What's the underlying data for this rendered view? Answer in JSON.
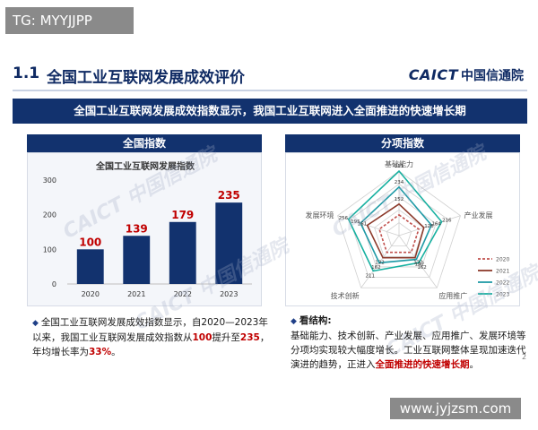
{
  "badge_top": "TG: MYYJJPP",
  "header": {
    "section_number": "1.1",
    "title": "全国工业互联网发展成效评价",
    "logo_latin": "CAICT",
    "logo_cn": "中国信通院"
  },
  "banner": "全国工业互联网发展成效指数显示，我国工业互联网进入全面推进的快速增长期",
  "left_panel": {
    "heading": "全国指数"
  },
  "right_panel": {
    "heading": "分项指数"
  },
  "watermark": "CAICT 中国信通院",
  "chart_data": [
    {
      "type": "bar",
      "title": "全国工业互联网发展指数",
      "categories": [
        "2020",
        "2021",
        "2022",
        "2023"
      ],
      "values": [
        100,
        139,
        179,
        235
      ],
      "ylim": [
        0,
        300
      ],
      "yticks": [
        "0",
        "100",
        "200",
        "300"
      ],
      "grid": false,
      "colors": {
        "bar": "#12326e",
        "label": "#c00000"
      }
    },
    {
      "type": "radar",
      "axes": [
        "基础能力",
        "产业发展",
        "应用推广",
        "技术创新",
        "发展环境"
      ],
      "max": 311,
      "series": [
        {
          "name": "2020",
          "values": [
            100,
            100,
            100,
            100,
            100
          ],
          "color": "#c0504d",
          "dash": true
        },
        {
          "name": "2021",
          "values": [
            152,
            126,
            132,
            132,
            161
          ],
          "color": "#8c3a2b",
          "dash": false
        },
        {
          "name": "2022",
          "values": [
            234,
            164,
            142,
            162,
            195
          ],
          "color": "#1f9aa6",
          "dash": false
        },
        {
          "name": "2023",
          "values": [
            311,
            216,
            162,
            211,
            256
          ],
          "color": "#16b0a0",
          "dash": false
        }
      ],
      "visible_labels": [
        "311",
        "234",
        "152",
        "216",
        "164",
        "142",
        "162",
        "211",
        "195",
        "256",
        "132",
        "132",
        "126",
        "161"
      ]
    }
  ],
  "notes": {
    "left": {
      "part1": "全国工业互联网发展成效指数显示，自2020—2023年以来，我国工业互联网发展成效指数从",
      "v1": "100",
      "part2": "提升至",
      "v2": "235",
      "part3": "，年均增长率为",
      "v3": "33%",
      "part4": "。"
    },
    "right": {
      "head": "看结构:",
      "part1": "基础能力、技术创新、产业发展、应用推广、发展环境等分项均实现较大幅度增长。工业互联网整体呈现加速迭代演进的趋势，正进入",
      "hl": "全面推进的快速增长期",
      "part2": "。"
    },
    "page": "2"
  },
  "footer": "www.jyjzsm.com"
}
